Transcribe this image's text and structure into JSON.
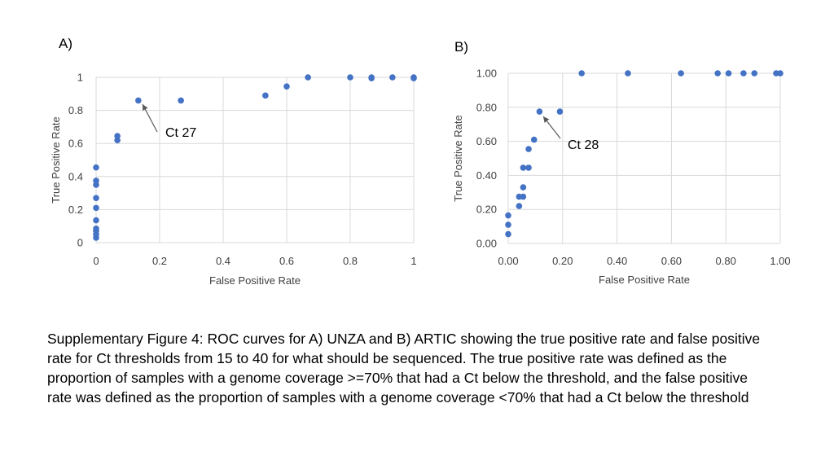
{
  "panels": {
    "a_label": "A)",
    "b_label": "B)"
  },
  "caption": "Supplementary Figure 4: ROC curves for A) UNZA and B) ARTIC showing the true positive rate and false positive rate for Ct thresholds from 15 to 40 for what should be sequenced. The true positive rate was defined as the proportion of samples with a genome coverage >=70% that had a Ct below the threshold, and the false positive rate was defined as the proportion of samples with a genome coverage <70% that had a Ct below the threshold",
  "colors": {
    "point": "#4472C4",
    "grid": "#D9D9D9",
    "text": "#404040"
  },
  "chart_data": [
    {
      "type": "scatter",
      "panel": "A)",
      "xlabel": "False Positive Rate",
      "ylabel": "True Positive Rate",
      "xlim": [
        0,
        1
      ],
      "ylim": [
        0,
        1
      ],
      "xticks": [
        "0",
        "0.2",
        "0.4",
        "0.6",
        "0.8",
        "1"
      ],
      "yticks": [
        "0",
        "0.2",
        "0.4",
        "0.6",
        "0.8",
        "1"
      ],
      "grid": true,
      "points": [
        {
          "x": 0,
          "y": 0.03
        },
        {
          "x": 0,
          "y": 0.05
        },
        {
          "x": 0,
          "y": 0.07
        },
        {
          "x": 0,
          "y": 0.085
        },
        {
          "x": 0,
          "y": 0.135
        },
        {
          "x": 0,
          "y": 0.21
        },
        {
          "x": 0,
          "y": 0.27
        },
        {
          "x": 0,
          "y": 0.35
        },
        {
          "x": 0,
          "y": 0.375
        },
        {
          "x": 0,
          "y": 0.455
        },
        {
          "x": 0.067,
          "y": 0.62
        },
        {
          "x": 0.067,
          "y": 0.645
        },
        {
          "x": 0.133,
          "y": 0.86
        },
        {
          "x": 0.267,
          "y": 0.86
        },
        {
          "x": 0.533,
          "y": 0.89
        },
        {
          "x": 0.6,
          "y": 0.945
        },
        {
          "x": 0.667,
          "y": 1.0
        },
        {
          "x": 0.8,
          "y": 1.0
        },
        {
          "x": 0.867,
          "y": 1.0
        },
        {
          "x": 0.867,
          "y": 0.995
        },
        {
          "x": 0.933,
          "y": 1.0
        },
        {
          "x": 1.0,
          "y": 1.0
        },
        {
          "x": 1.0,
          "y": 0.995
        }
      ],
      "annotation": {
        "text": "Ct 27",
        "x": 0.133,
        "y": 0.86
      }
    },
    {
      "type": "scatter",
      "panel": "B)",
      "xlabel": "False Positive Rate",
      "ylabel": "True Positive Rate",
      "xlim": [
        0,
        1
      ],
      "ylim": [
        0,
        1
      ],
      "xticks": [
        "0.00",
        "0.20",
        "0.40",
        "0.60",
        "0.80",
        "1.00"
      ],
      "yticks": [
        "0.00",
        "0.20",
        "0.40",
        "0.60",
        "0.80",
        "1.00"
      ],
      "grid": true,
      "points": [
        {
          "x": 0,
          "y": 0.055
        },
        {
          "x": 0,
          "y": 0.11
        },
        {
          "x": 0,
          "y": 0.165
        },
        {
          "x": 0.04,
          "y": 0.22
        },
        {
          "x": 0.04,
          "y": 0.275
        },
        {
          "x": 0.055,
          "y": 0.275
        },
        {
          "x": 0.055,
          "y": 0.33
        },
        {
          "x": 0.055,
          "y": 0.445
        },
        {
          "x": 0.075,
          "y": 0.445
        },
        {
          "x": 0.075,
          "y": 0.555
        },
        {
          "x": 0.095,
          "y": 0.61
        },
        {
          "x": 0.115,
          "y": 0.775
        },
        {
          "x": 0.19,
          "y": 0.775
        },
        {
          "x": 0.27,
          "y": 1.0
        },
        {
          "x": 0.44,
          "y": 1.0
        },
        {
          "x": 0.635,
          "y": 1.0
        },
        {
          "x": 0.77,
          "y": 1.0
        },
        {
          "x": 0.81,
          "y": 1.0
        },
        {
          "x": 0.865,
          "y": 1.0
        },
        {
          "x": 0.905,
          "y": 1.0
        },
        {
          "x": 0.985,
          "y": 1.0
        },
        {
          "x": 1.0,
          "y": 1.0
        }
      ],
      "annotation": {
        "text": "Ct 28",
        "x": 0.115,
        "y": 0.775
      }
    }
  ]
}
